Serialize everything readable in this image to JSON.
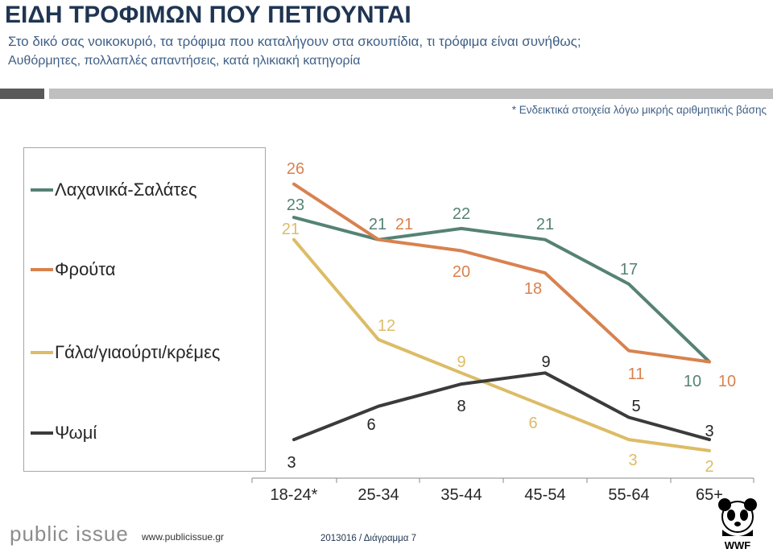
{
  "header": {
    "title": "ΕΙΔΗ ΤΡΟΦΙΜΩΝ ΠΟΥ ΠΕΤΙΟΥΝΤΑΙ",
    "question": "Στο δικό σας νοικοκυριό, τα τρόφιμα που καταλήγουν στα σκουπίδια, τι τρόφιμα είναι συνήθως;",
    "method": "Αυθόρμητες, πολλαπλές απαντήσεις, κατά ηλικιακή κατηγορία",
    "note": "* Ενδεικτικά στοιχεία λόγω μικρής αριθμητικής βάσης"
  },
  "chart_data": {
    "type": "line",
    "categories": [
      "18-24*",
      "25-34",
      "35-44",
      "45-54",
      "55-64",
      "65+"
    ],
    "series": [
      {
        "name": "Λαχανικά-Σαλάτες",
        "color": "#558275",
        "values": [
          23,
          21,
          22,
          21,
          17,
          10
        ]
      },
      {
        "name": "Φρούτα",
        "color": "#d8824f",
        "values": [
          26,
          21,
          20,
          18,
          11,
          10
        ]
      },
      {
        "name": "Γάλα/γιαούρτι/κρέμες",
        "color": "#dcbc66",
        "values": [
          21,
          12,
          9,
          6,
          3,
          2
        ]
      },
      {
        "name": "Ψωμί",
        "color": "#3b3b3b",
        "values": [
          3,
          6,
          8,
          9,
          5,
          3
        ]
      }
    ],
    "legend": "left"
  },
  "footer": {
    "logo": "public issue",
    "url": "www.publicissue.gr",
    "code": "2013016 / Διάγραμμα 7",
    "wwf": "WWF"
  }
}
